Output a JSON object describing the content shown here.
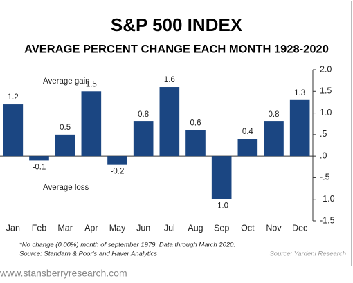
{
  "chart_data": {
    "type": "bar",
    "title": "S&P 500 INDEX",
    "subtitle": "AVERAGE PERCENT CHANGE EACH MONTH 1928-2020",
    "categories": [
      "Jan",
      "Feb",
      "Mar",
      "Apr",
      "May",
      "Jun",
      "Jul",
      "Aug",
      "Sep",
      "Oct",
      "Nov",
      "Dec"
    ],
    "values": [
      1.2,
      -0.1,
      0.5,
      1.5,
      -0.2,
      0.8,
      1.6,
      0.6,
      -1.0,
      0.4,
      0.8,
      1.3
    ],
    "value_labels": [
      "1.2",
      "-0.1",
      "0.5",
      "1.5",
      "-0.2",
      "0.8",
      "1.6",
      "0.6",
      "-1.0",
      "0.4",
      "0.8",
      "1.3"
    ],
    "color": "#1b4682",
    "ylim": [
      -1.5,
      2.0
    ],
    "yticks": [
      {
        "value": 2.0,
        "label": "2.0"
      },
      1.5,
      {
        "value": 1.0,
        "label": "1.0"
      },
      {
        "value": 0.5,
        "label": ".5"
      },
      {
        "value": 0,
        "label": ".0"
      },
      {
        "value": -0.5,
        "label": "-.5"
      },
      {
        "value": -1.0,
        "label": "-1.0"
      },
      -1.5
    ],
    "yaxis_side": "right",
    "annotations": [
      "Average gain",
      "Average loss"
    ],
    "footnotes": [
      "*No change (0.00%) month of september 1979. Data through March 2020.",
      "Source: Standarn & Poor's and Haver Analytics"
    ],
    "source": "Source: Yardeni Research",
    "website": "www.stansberryresearch.com"
  }
}
